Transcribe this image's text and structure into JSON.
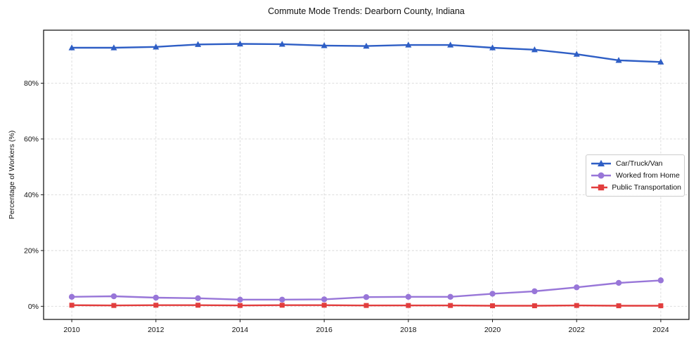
{
  "figure": {
    "title": "Commute Mode Trends: Dearborn County, Indiana"
  },
  "chart_data": {
    "type": "line",
    "title": "Commute Mode Trends: Dearborn County, Indiana",
    "xlabel": "",
    "ylabel": "Percentage of Workers (%)",
    "x": [
      2010,
      2011,
      2012,
      2013,
      2014,
      2015,
      2016,
      2017,
      2018,
      2019,
      2020,
      2021,
      2022,
      2023,
      2024
    ],
    "x_tick_values": [
      2010,
      2012,
      2014,
      2016,
      2018,
      2020,
      2022,
      2024
    ],
    "x_tick_labels": [
      "2010",
      "2012",
      "2014",
      "2016",
      "2018",
      "2020",
      "2022",
      "2024"
    ],
    "y_tick_values": [
      0,
      20,
      40,
      60,
      80
    ],
    "y_tick_labels": [
      "0%",
      "20%",
      "40%",
      "60%",
      "80%"
    ],
    "xlim": [
      2009.33,
      2024.67
    ],
    "ylim": [
      -4.7,
      99.0
    ],
    "grid": true,
    "grid_style": "dashed",
    "grid_color": "#d9d9d9",
    "axis_color": "#1a1a1a",
    "legend_position": "center-right",
    "series": [
      {
        "name": "Car/Truck/Van",
        "color": "#2e5ec5",
        "marker": "triangle",
        "values": [
          92.7,
          92.7,
          93.0,
          93.9,
          94.1,
          94.0,
          93.5,
          93.3,
          93.7,
          93.7,
          92.7,
          92.0,
          90.4,
          88.2,
          87.6
        ]
      },
      {
        "name": "Worked from Home",
        "color": "#9876d8",
        "marker": "circle",
        "values": [
          3.4,
          3.6,
          3.1,
          2.9,
          2.4,
          2.4,
          2.5,
          3.3,
          3.4,
          3.4,
          4.5,
          5.4,
          6.8,
          8.4,
          9.3
        ]
      },
      {
        "name": "Public Transportation",
        "color": "#e23e3e",
        "marker": "square",
        "values": [
          0.4,
          0.3,
          0.4,
          0.4,
          0.3,
          0.4,
          0.4,
          0.3,
          0.3,
          0.3,
          0.2,
          0.2,
          0.3,
          0.2,
          0.2
        ]
      }
    ]
  }
}
